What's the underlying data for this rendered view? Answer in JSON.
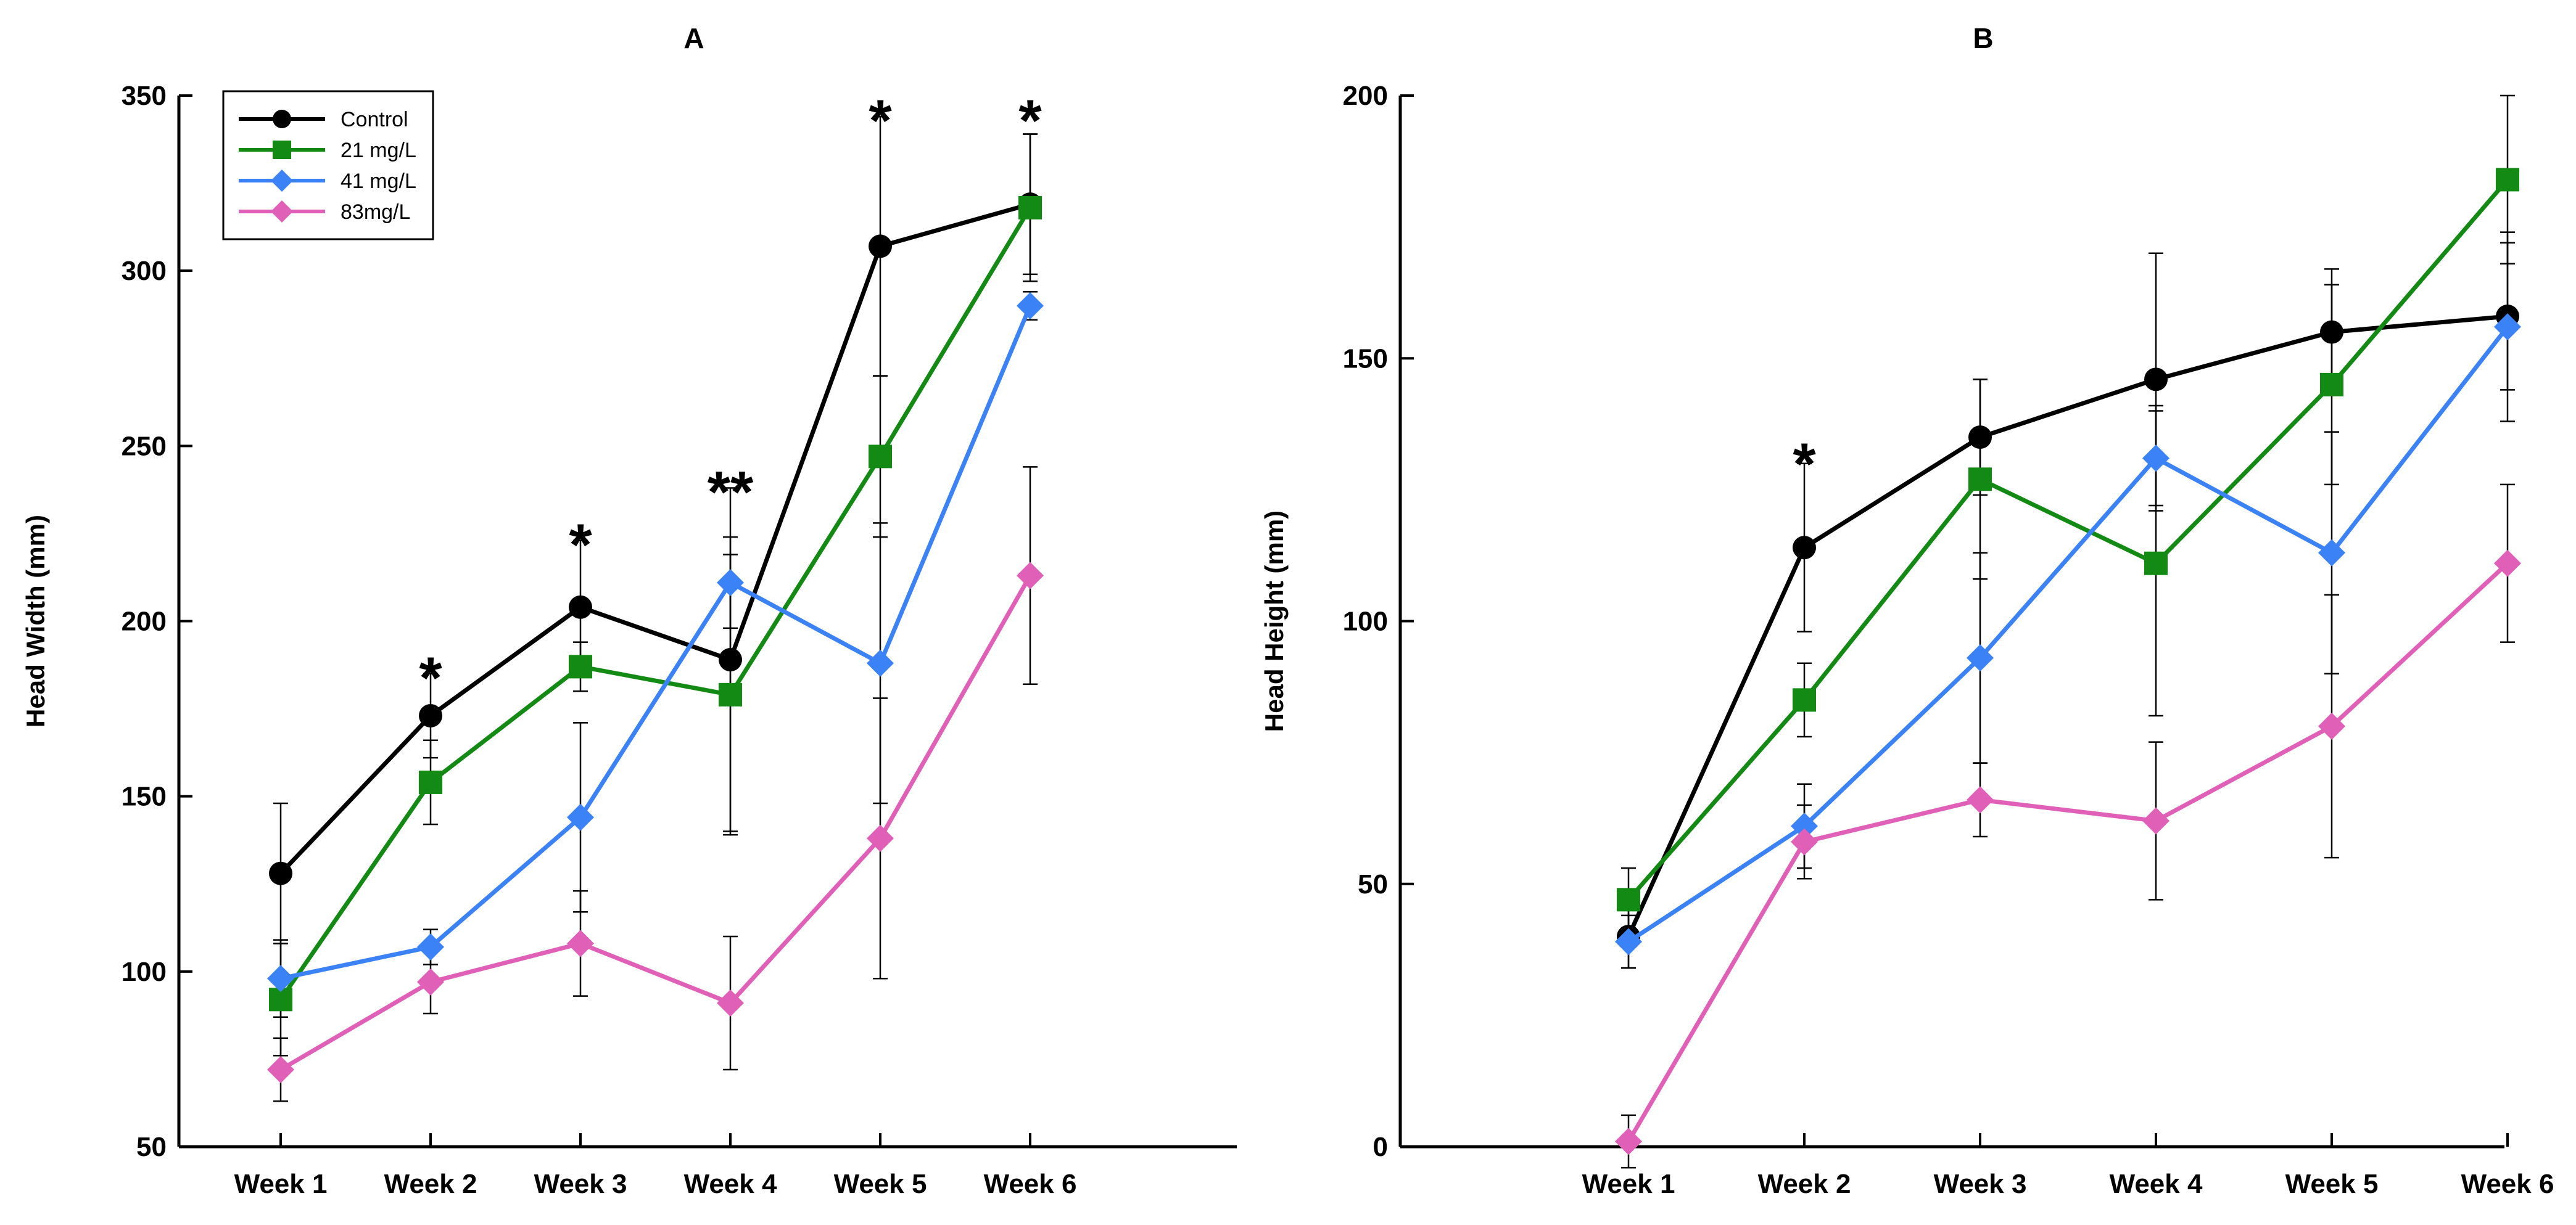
{
  "chart_data": [
    {
      "type": "line",
      "title": "A",
      "xlabel": "",
      "ylabel": "Head Width (mm)",
      "categories": [
        "Week 1",
        "Week 2",
        "Week 3",
        "Week 4",
        "Week 5",
        "Week 6"
      ],
      "ylim": [
        50,
        350
      ],
      "yticks": [
        50,
        100,
        150,
        200,
        250,
        300,
        350
      ],
      "grid": false,
      "legend": "top-left",
      "series": [
        {
          "name": "Control",
          "color": "#000000",
          "marker": "circle",
          "values": [
            128,
            173,
            204,
            189,
            307,
            319
          ],
          "errors": [
            20,
            12,
            19,
            49,
            37,
            20
          ]
        },
        {
          "name": "21 mg/L",
          "color": "#138a13",
          "marker": "square",
          "values": [
            92,
            154,
            187,
            179,
            247,
            318
          ],
          "errors": [
            16,
            12,
            7,
            40,
            23,
            21
          ]
        },
        {
          "name": "41 mg/L",
          "color": "#3b82f6",
          "marker": "diamond",
          "values": [
            98,
            107,
            144,
            211,
            188,
            290
          ],
          "errors": [
            11,
            5,
            27,
            13,
            40,
            4
          ]
        },
        {
          "name": "83mg/L",
          "color": "#e060b8",
          "marker": "diamond",
          "values": [
            72,
            97,
            108,
            91,
            138,
            213
          ],
          "errors": [
            9,
            9,
            15,
            19,
            40,
            31
          ]
        }
      ],
      "annotations": [
        {
          "category": "Week 2",
          "text": "*",
          "y": 190
        },
        {
          "category": "Week 3",
          "text": "*",
          "y": 228
        },
        {
          "category": "Week 4",
          "text": "**",
          "y": 243
        },
        {
          "category": "Week 5",
          "text": "*",
          "y": 349
        },
        {
          "category": "Week 6",
          "text": "*",
          "y": 349
        }
      ]
    },
    {
      "type": "line",
      "title": "B",
      "xlabel": "",
      "ylabel": "Head Height (mm)",
      "categories": [
        "Week 1",
        "Week 2",
        "Week 3",
        "Week 4",
        "Week 5",
        "Week 6"
      ],
      "ylim": [
        0,
        200
      ],
      "yticks": [
        0,
        50,
        100,
        150,
        200
      ],
      "grid": false,
      "legend": "none",
      "series": [
        {
          "name": "Control",
          "color": "#000000",
          "marker": "circle",
          "values": [
            40,
            114,
            135,
            146,
            155,
            158
          ],
          "errors": [
            6,
            16,
            11,
            24,
            12,
            14
          ]
        },
        {
          "name": "21 mg/L",
          "color": "#138a13",
          "marker": "square",
          "values": [
            47,
            85,
            127,
            111,
            145,
            184
          ],
          "errors": [
            6,
            7,
            19,
            29,
            19,
            16
          ]
        },
        {
          "name": "41 mg/L",
          "color": "#3b82f6",
          "marker": "diamond",
          "values": [
            39,
            61,
            93,
            131,
            113,
            156
          ],
          "errors": [
            5,
            8,
            20,
            10,
            23,
            18
          ]
        },
        {
          "name": "83mg/L",
          "color": "#e060b8",
          "marker": "diamond",
          "values": [
            1,
            58,
            66,
            62,
            80,
            111
          ],
          "errors": [
            5,
            7,
            7,
            15,
            25,
            15
          ]
        }
      ],
      "annotations": [
        {
          "category": "Week 2",
          "text": "*",
          "y": 134
        }
      ]
    }
  ]
}
